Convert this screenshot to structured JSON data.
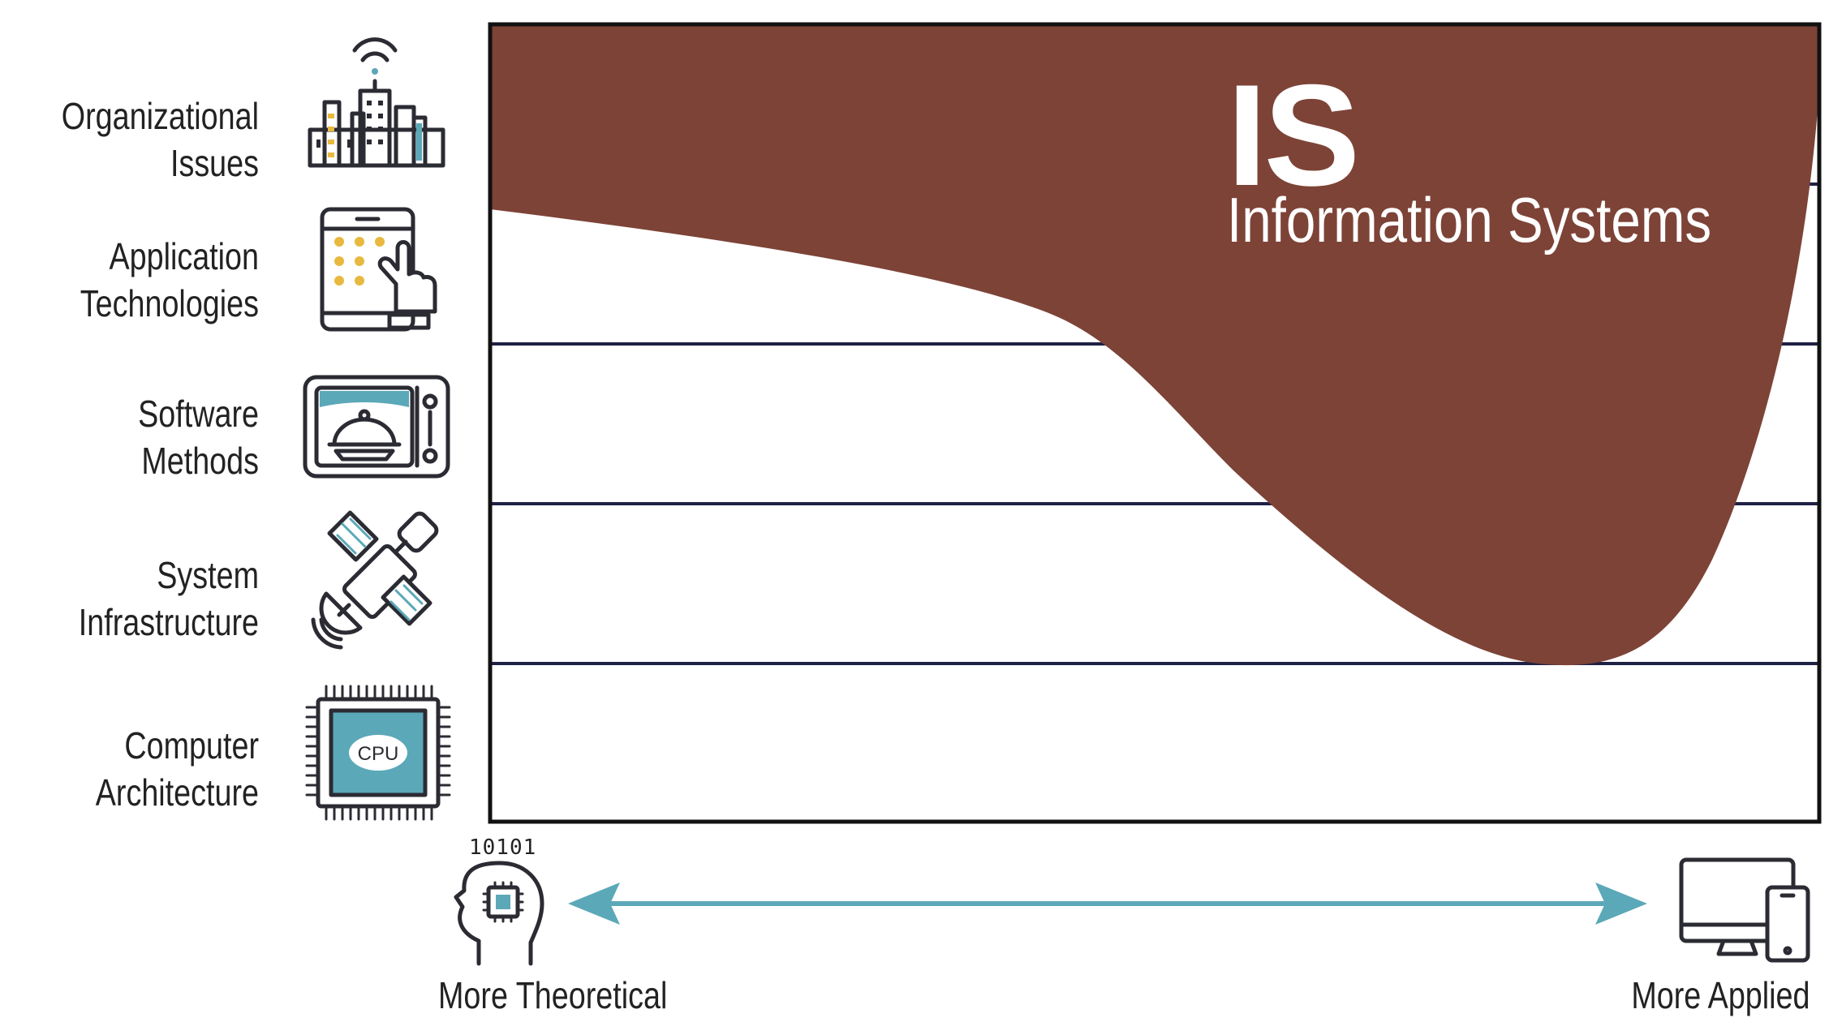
{
  "rows": [
    {
      "line1": "Organizational",
      "line2": "Issues",
      "icon": "city-buildings-wifi-icon"
    },
    {
      "line1": "Application",
      "line2": "Technologies",
      "icon": "tablet-touch-hand-icon"
    },
    {
      "line1": "Software",
      "line2": "Methods",
      "icon": "microwave-oven-dish-icon"
    },
    {
      "line1": "System",
      "line2": "Infrastructure",
      "icon": "satellite-icon"
    },
    {
      "line1": "Computer",
      "line2": "Architecture",
      "icon": "cpu-chip-icon"
    }
  ],
  "region": {
    "abbr": "IS",
    "name": "Information Systems",
    "color": "#7d4337"
  },
  "cpu_label": "CPU",
  "bits": "10101",
  "axis": {
    "left_label": "More Theoretical",
    "right_label": "More Applied",
    "arrow_color": "#5ba8b8"
  },
  "colors": {
    "gridline": "#1f2045",
    "frame": "#111111",
    "icon_stroke": "#2b2b33",
    "icon_teal": "#5ba8b8",
    "icon_yellow": "#e8b93e"
  }
}
